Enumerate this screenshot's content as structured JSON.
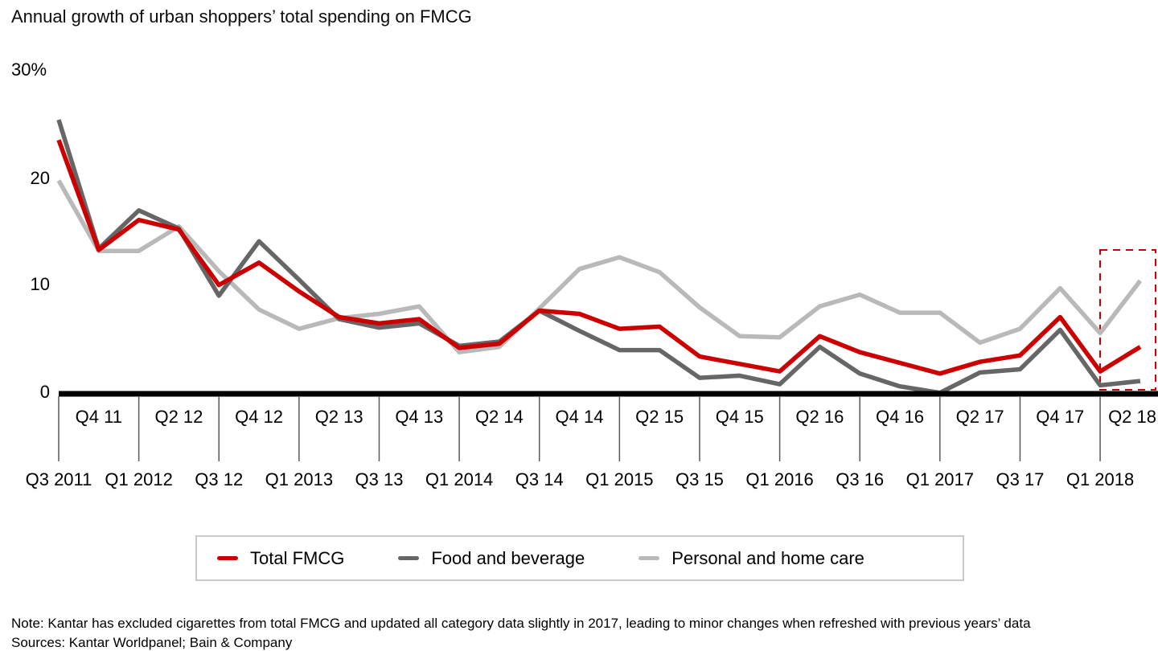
{
  "title": "Annual growth of urban shoppers’ total spending on FMCG",
  "y_axis": {
    "top_label": "30%",
    "ticks": [
      "20",
      "10",
      "0"
    ]
  },
  "chart_data": {
    "type": "line",
    "title": "Annual growth of urban shoppers’ total spending on FMCG",
    "ylabel": "%",
    "ylim": [
      0,
      30
    ],
    "grid": false,
    "legend_position": "bottom",
    "x": [
      "Q3 2011",
      "Q4 11",
      "Q1 2012",
      "Q2 12",
      "Q3 12",
      "Q4 12",
      "Q1 2013",
      "Q2 13",
      "Q3 13",
      "Q4 13",
      "Q1 2014",
      "Q2 14",
      "Q3 14",
      "Q4 14",
      "Q1 2015",
      "Q2 15",
      "Q3 15",
      "Q4 15",
      "Q1 2016",
      "Q2 16",
      "Q3 16",
      "Q4 16",
      "Q1 2017",
      "Q2 17",
      "Q3 17",
      "Q4 17",
      "Q1 2018",
      "Q2 18"
    ],
    "x_ticks_bottom": [
      "Q3 2011",
      "Q1 2012",
      "Q3 12",
      "Q1 2013",
      "Q3 13",
      "Q1 2014",
      "Q3 14",
      "Q1 2015",
      "Q3 15",
      "Q1 2016",
      "Q3 16",
      "Q1 2017",
      "Q3 17",
      "Q1 2018"
    ],
    "x_ticks_top": [
      "Q4 11",
      "Q2 12",
      "Q4 12",
      "Q2 13",
      "Q4 13",
      "Q2 14",
      "Q4 14",
      "Q2 15",
      "Q4 15",
      "Q2 16",
      "Q4 16",
      "Q2 17",
      "Q4 17",
      "Q2 18"
    ],
    "series": [
      {
        "name": "Total FMCG",
        "color": "#cc0000",
        "values": [
          23.8,
          13.5,
          16.3,
          15.4,
          10.2,
          12.3,
          9.6,
          7.2,
          6.6,
          7.0,
          4.3,
          4.7,
          7.8,
          7.5,
          6.1,
          6.3,
          3.5,
          2.8,
          2.1,
          5.4,
          3.9,
          2.9,
          1.9,
          3.0,
          3.6,
          7.2,
          2.1,
          4.4
        ]
      },
      {
        "name": "Food and beverage",
        "color": "#666666",
        "values": [
          25.7,
          13.6,
          17.2,
          15.5,
          9.2,
          14.3,
          10.7,
          7.0,
          6.2,
          6.6,
          4.5,
          4.9,
          7.8,
          5.9,
          4.1,
          4.1,
          1.5,
          1.7,
          0.9,
          4.4,
          1.9,
          0.7,
          0.1,
          2.0,
          2.3,
          6.0,
          0.8,
          1.2
        ]
      },
      {
        "name": "Personal and home care",
        "color": "#b9b9b9",
        "values": [
          20.0,
          13.4,
          13.4,
          15.7,
          11.5,
          7.9,
          6.1,
          7.1,
          7.5,
          8.2,
          3.9,
          4.4,
          8.0,
          11.7,
          12.8,
          11.4,
          8.1,
          5.4,
          5.3,
          8.2,
          9.3,
          7.6,
          7.6,
          4.8,
          6.1,
          9.9,
          5.7,
          10.6
        ]
      }
    ],
    "highlight": {
      "label": "Q2 18",
      "color": "#cc0000",
      "style": "dashed-box"
    }
  },
  "legend": {
    "items": [
      {
        "label": "Total FMCG",
        "color": "#cc0000"
      },
      {
        "label": "Food and beverage",
        "color": "#666666"
      },
      {
        "label": "Personal and home care",
        "color": "#b9b9b9"
      }
    ]
  },
  "notes": {
    "note": "Note: Kantar has excluded cigarettes from total FMCG and updated all category data slightly in 2017, leading to minor changes when refreshed with previous years’ data",
    "sources": "Sources: Kantar Worldpanel; Bain & Company"
  }
}
